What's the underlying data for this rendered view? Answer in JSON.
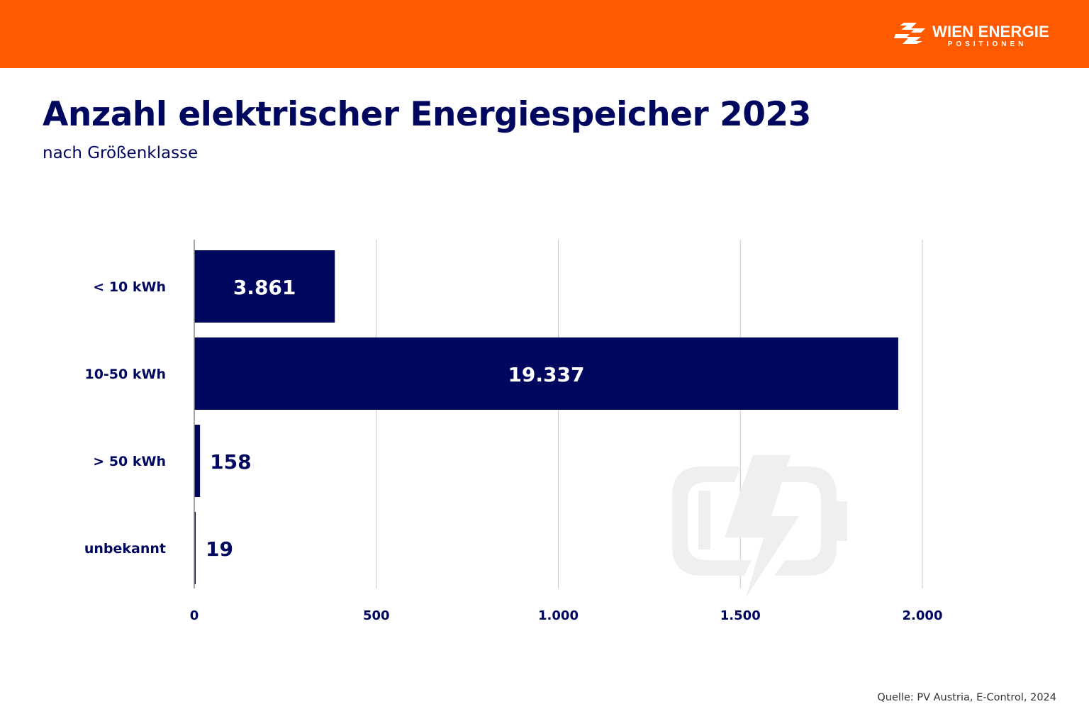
{
  "brand": {
    "name": "WIEN ENERGIE",
    "tagline": "POSITIONEN",
    "color": "#ff5a00"
  },
  "chart_data": {
    "type": "bar",
    "orientation": "horizontal",
    "title": "Anzahl elektrischer Energiespeicher 2023",
    "subtitle": "nach Größenklasse",
    "categories": [
      "< 10 kWh",
      "10-50 kWh",
      "> 50 kWh",
      "unbekannt"
    ],
    "values": [
      3861,
      19337,
      158,
      19
    ],
    "value_labels": [
      "3.861",
      "19.337",
      "158",
      "19"
    ],
    "xticks": [
      0,
      500,
      1000,
      1500,
      2000
    ],
    "xtick_labels": [
      "0",
      "500",
      "1.000",
      "1.500",
      "2.000"
    ],
    "xlim": [
      0,
      2000
    ],
    "grid": true,
    "bar_color": "#00075f",
    "watermark_icon": "battery-charging-icon"
  },
  "footer": {
    "source": "Quelle: PV Austria, E-Control, 2024"
  }
}
